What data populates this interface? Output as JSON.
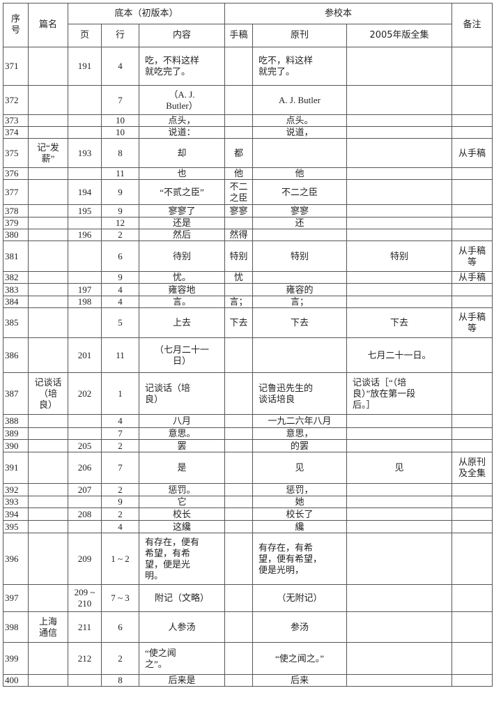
{
  "header": {
    "seq": "序\n号",
    "title": "篇名",
    "base_group": "底本（初版本）",
    "ref_group": "参校本",
    "note": "备注",
    "page": "页",
    "line": "行",
    "content": "内容",
    "manuscript": "手稿",
    "original": "原刊",
    "edition2005": "2005年版全集"
  },
  "rows": [
    [
      "371",
      "",
      "191",
      "4",
      "吃，不料这样\n就吃完了。",
      "",
      "吃不，料这样\n就完了。",
      "",
      ""
    ],
    [
      "372",
      "",
      "",
      "7",
      "（A. J.\nButler）",
      "",
      "A. J. Butler",
      "",
      ""
    ],
    [
      "373",
      "",
      "",
      "10",
      "点头，",
      "",
      "点头。",
      "",
      ""
    ],
    [
      "374",
      "",
      "",
      "10",
      "说道：",
      "",
      "说道，",
      "",
      ""
    ],
    [
      "375",
      "记“发\n薪”",
      "193",
      "8",
      "却",
      "都",
      "",
      "",
      "从手稿"
    ],
    [
      "376",
      "",
      "",
      "11",
      "也",
      "他",
      "他",
      "",
      ""
    ],
    [
      "377",
      "",
      "194",
      "9",
      "“不贰之臣”",
      "不二\n之臣",
      "不二之臣",
      "",
      ""
    ],
    [
      "378",
      "",
      "195",
      "9",
      "寥寥了",
      "寥寥",
      "寥寥",
      "",
      ""
    ],
    [
      "379",
      "",
      "",
      "12",
      "还是",
      "",
      "还",
      "",
      ""
    ],
    [
      "380",
      "",
      "196",
      "2",
      "然后",
      "然得",
      "",
      "",
      ""
    ],
    [
      "381",
      "",
      "",
      "6",
      "待别",
      "特别",
      "特别",
      "特别",
      "从手稿\n等"
    ],
    [
      "382",
      "",
      "",
      "9",
      "忧。",
      "忧",
      "",
      "",
      "从手稿"
    ],
    [
      "383",
      "",
      "197",
      "4",
      "雍容地",
      "",
      "雍容的",
      "",
      ""
    ],
    [
      "384",
      "",
      "198",
      "4",
      "言。",
      "言；",
      "言；",
      "",
      ""
    ],
    [
      "385",
      "",
      "",
      "5",
      "上去",
      "下去",
      "下去",
      "下去",
      "从手稿\n等"
    ],
    [
      "386",
      "",
      "201",
      "11",
      "（七月二十一\n日）",
      "",
      "",
      "七月二十一日。",
      ""
    ],
    [
      "387",
      "记谈话\n（培\n良）",
      "202",
      "1",
      "记谈话（培\n良）",
      "",
      "记鲁迅先生的\n谈话培良",
      "记谈话［“（培\n良）”放在第一段\n后。］",
      ""
    ],
    [
      "388",
      "",
      "",
      "4",
      "八月",
      "",
      "一九二六年八月",
      "",
      ""
    ],
    [
      "389",
      "",
      "",
      "7",
      "意思。",
      "",
      "意思，",
      "",
      ""
    ],
    [
      "390",
      "",
      "205",
      "2",
      "罢",
      "",
      "的罢",
      "",
      ""
    ],
    [
      "391",
      "",
      "206",
      "7",
      "是",
      "",
      "见",
      "见",
      "从原刊\n及全集"
    ],
    [
      "392",
      "",
      "207",
      "2",
      "惩罚。",
      "",
      "惩罚，",
      "",
      ""
    ],
    [
      "393",
      "",
      "",
      "9",
      "它",
      "",
      "她",
      "",
      ""
    ],
    [
      "394",
      "",
      "208",
      "2",
      "校长",
      "",
      "校长了",
      "",
      ""
    ],
    [
      "395",
      "",
      "",
      "4",
      "这纔",
      "",
      "纔",
      "",
      ""
    ],
    [
      "396",
      "",
      "209",
      "1 ~ 2",
      "有存在，便有\n希望，有希\n望，便是光\n明。",
      "",
      "有存在，有希\n望，便有希望，\n便是光明，",
      "",
      ""
    ],
    [
      "397",
      "",
      "209 ~\n210",
      "7 ~ 3",
      "附记（文略）",
      "",
      "（无附记）",
      "",
      ""
    ],
    [
      "398",
      "上海\n通信",
      "211",
      "6",
      "人参汤",
      "",
      "参汤",
      "",
      ""
    ],
    [
      "399",
      "",
      "212",
      "2",
      "“使之闻\n之”。",
      "",
      "“使之闻之。”",
      "",
      ""
    ],
    [
      "400",
      "",
      "",
      "8",
      "后来是",
      "",
      "后来",
      "",
      ""
    ]
  ]
}
